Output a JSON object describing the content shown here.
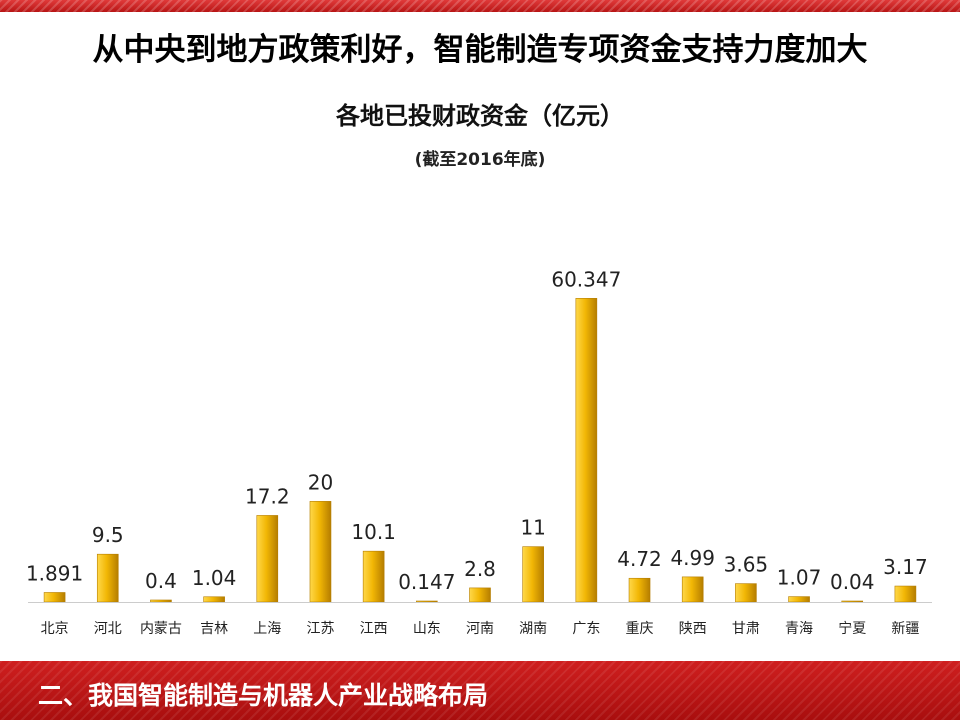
{
  "slide": {
    "title": "从中央到地方政策利好，智能制造专项资金支持力度加大",
    "footer": "二、我国智能制造与机器人产业战略布局"
  },
  "colors": {
    "bar_light": "#ffd84a",
    "bar_mid": "#f2b705",
    "bar_dark": "#b57d00",
    "brand_red": "#c41a1a"
  },
  "chart_data": {
    "type": "bar",
    "title": "各地已投财政资金（亿元）",
    "subtitle": "(截至2016年底)",
    "categories": [
      "北京",
      "河北",
      "内蒙古",
      "吉林",
      "上海",
      "江苏",
      "江西",
      "山东",
      "河南",
      "湖南",
      "广东",
      "重庆",
      "陕西",
      "甘肃",
      "青海",
      "宁夏",
      "新疆"
    ],
    "value_labels": [
      "1.891",
      "9.5",
      "0.4",
      "1.04",
      "17.2",
      "20",
      "10.1",
      "0.147",
      "2.8",
      "11",
      "60.347",
      "4.72",
      "4.99",
      "3.65",
      "1.07",
      "0.04",
      "3.17"
    ],
    "values": [
      1.891,
      9.5,
      0.4,
      1.04,
      17.2,
      20,
      10.1,
      0.147,
      2.8,
      11,
      60.347,
      4.72,
      4.99,
      3.65,
      1.07,
      0.04,
      3.17
    ],
    "ylim": [
      0,
      62
    ],
    "grid": false,
    "legend": "none"
  }
}
